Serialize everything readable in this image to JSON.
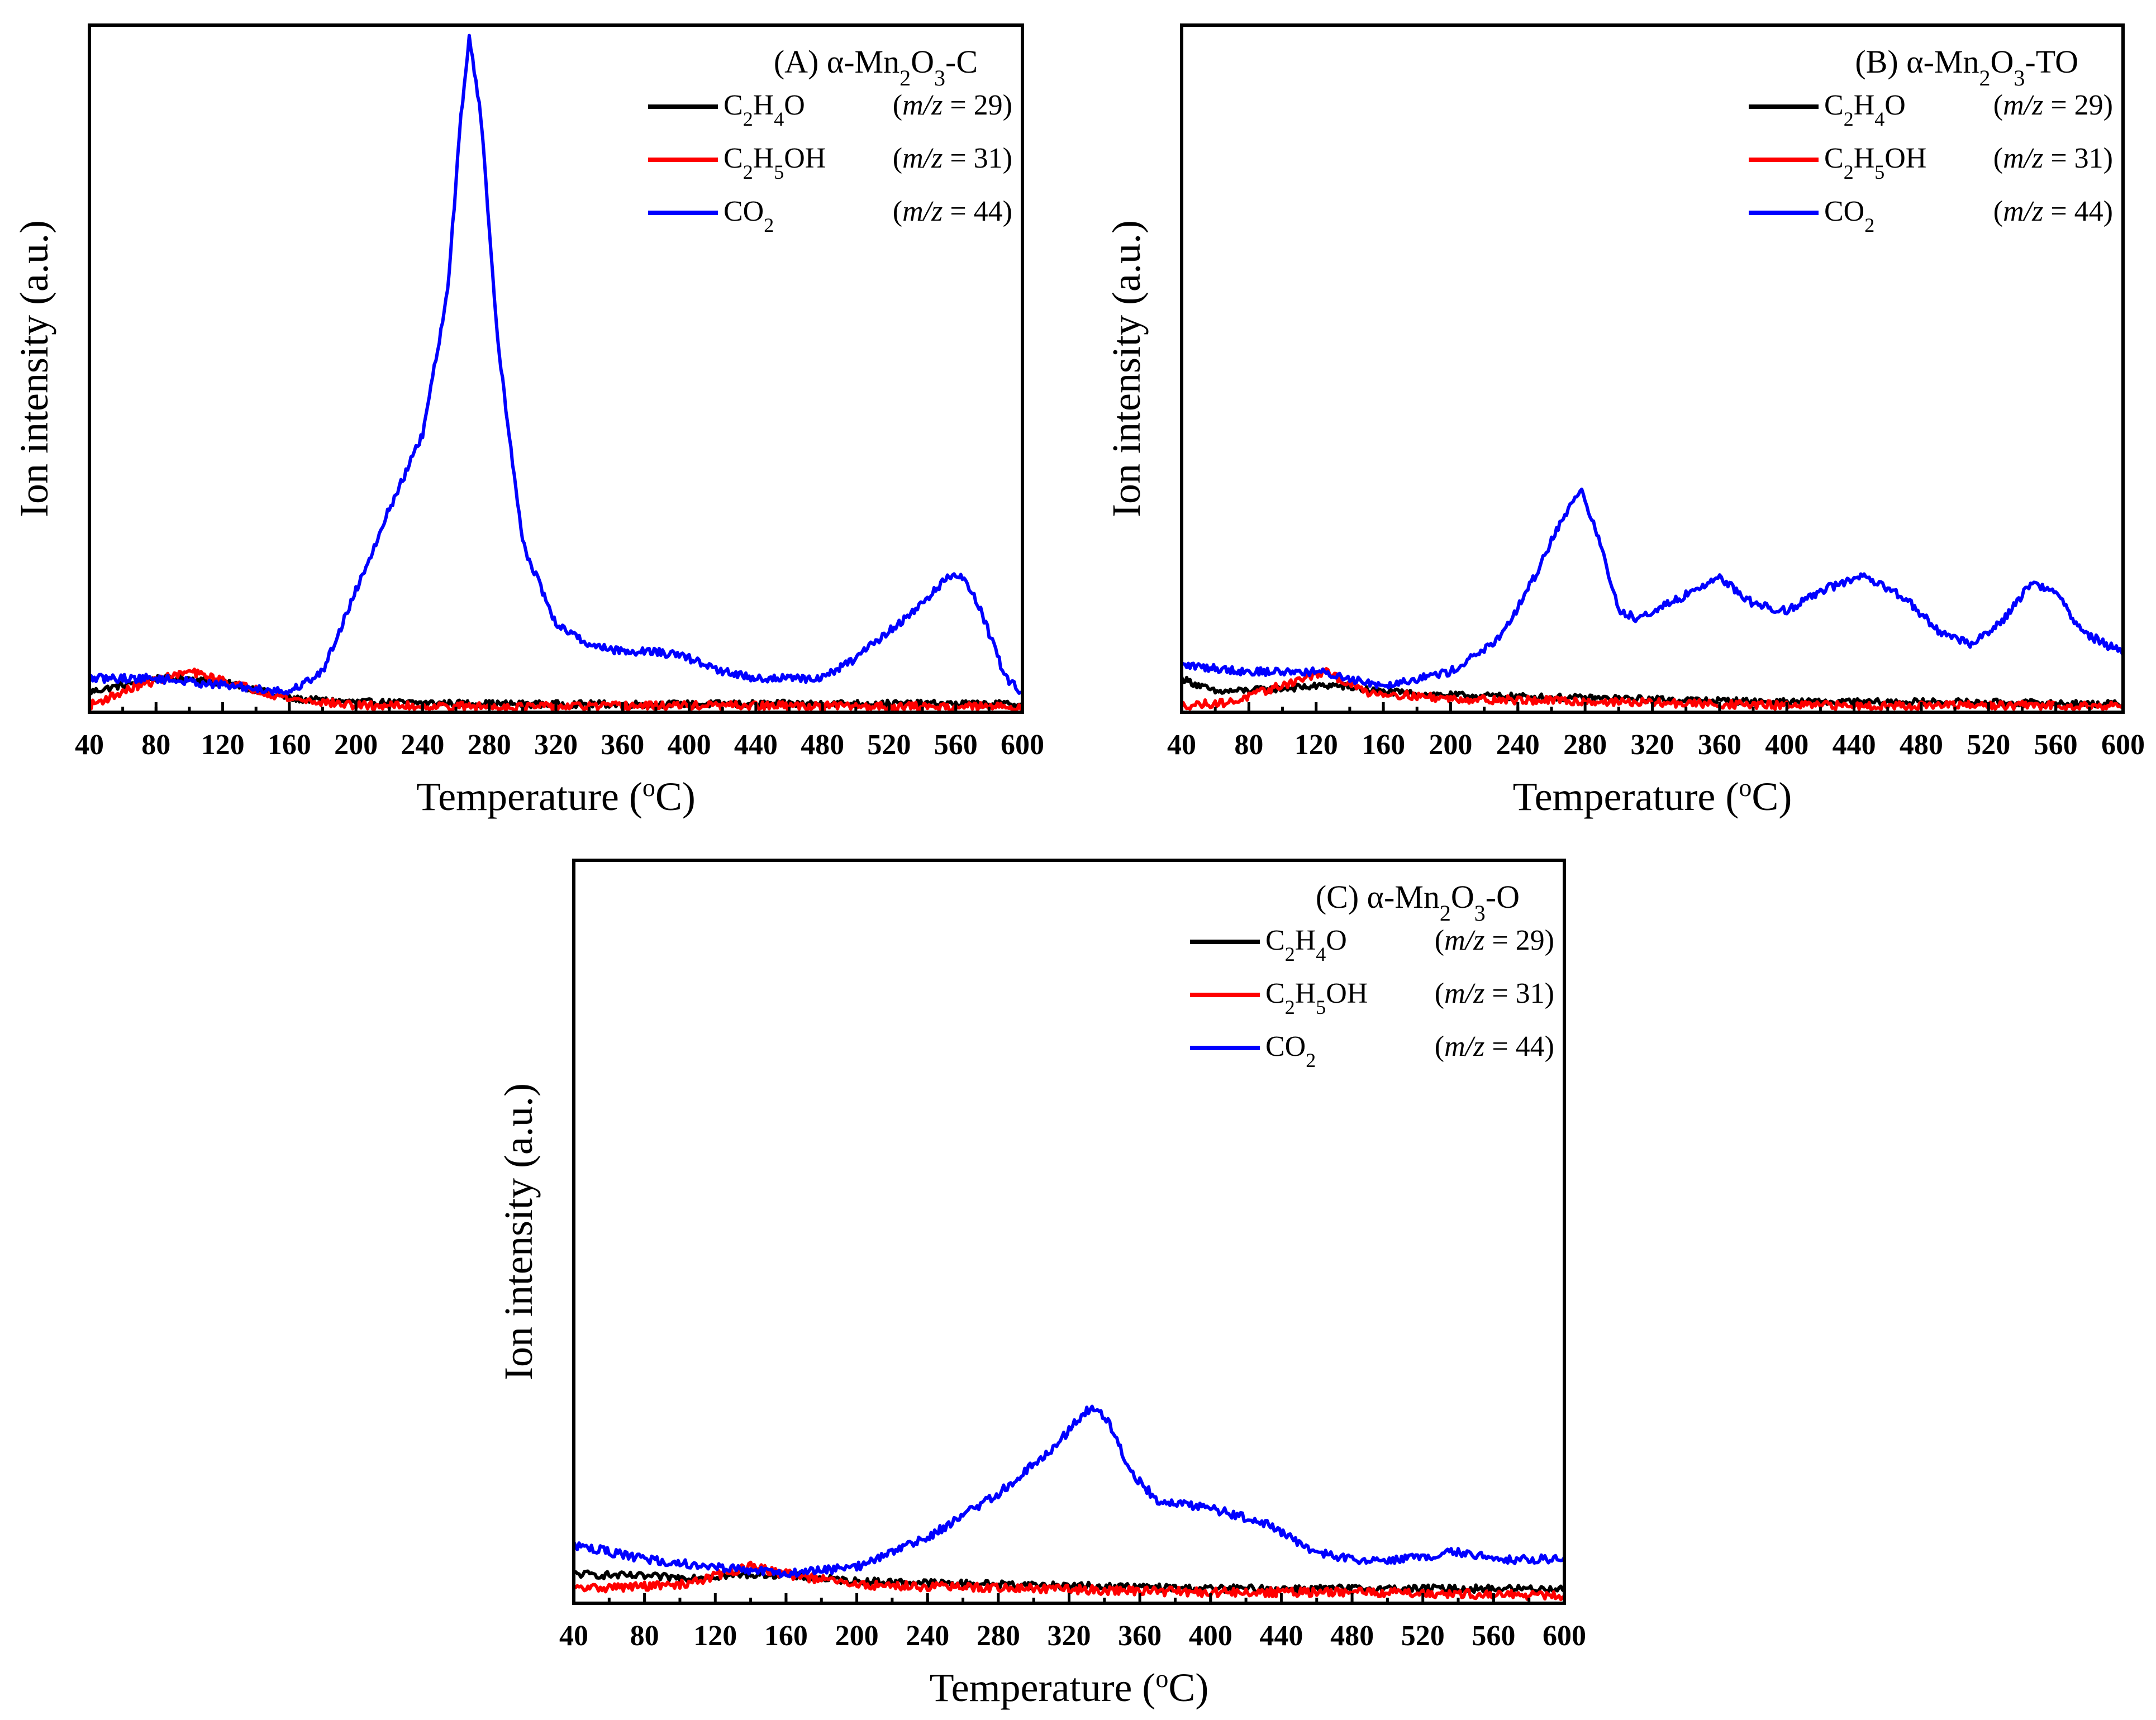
{
  "chart_data": [
    {
      "id": "A",
      "type": "line",
      "title": "(A) α-Mn2O3-C",
      "title_parts": {
        "prefix": "(A) α-Mn",
        "sub1": "2",
        "mid": "O",
        "sub2": "3",
        "suffix": "-C"
      },
      "xlabel": "Temperature (oC)",
      "xlabel_parts": {
        "pre": "Temperature (",
        "sup": "o",
        "post": "C)"
      },
      "ylabel": "Ion intensity (a.u.)",
      "xlim": [
        40,
        600
      ],
      "ylim": [
        0,
        100
      ],
      "xticks": [
        40,
        80,
        120,
        160,
        200,
        240,
        280,
        320,
        360,
        400,
        440,
        480,
        520,
        560,
        600
      ],
      "legend_position": "top-right",
      "series": [
        {
          "name": "C2H4O (m/z = 29)",
          "color": "#000000",
          "noise": 0.5,
          "x": [
            40,
            80,
            100,
            130,
            160,
            200,
            300,
            400,
            500,
            600
          ],
          "y": [
            3,
            5,
            5,
            4,
            2,
            1.5,
            1.2,
            1.2,
            1.3,
            1.2
          ]
        },
        {
          "name": "C2H5OH (m/z = 31)",
          "color": "#ff0000",
          "noise": 0.6,
          "x": [
            40,
            70,
            100,
            130,
            160,
            200,
            300,
            400,
            500,
            600
          ],
          "y": [
            1,
            4,
            6,
            4,
            2,
            1,
            0.8,
            1,
            0.9,
            0.8
          ]
        },
        {
          "name": "CO2 (m/z = 44)",
          "color": "#0000ff",
          "noise": 0.6,
          "x": [
            40,
            80,
            120,
            160,
            180,
            200,
            220,
            240,
            255,
            263,
            268,
            275,
            285,
            300,
            320,
            340,
            360,
            380,
            400,
            420,
            440,
            460,
            480,
            500,
            520,
            540,
            555,
            565,
            575,
            590,
            600
          ],
          "y": [
            5,
            5,
            4,
            3,
            6,
            18,
            30,
            41,
            62,
            88,
            100,
            88,
            55,
            25,
            13,
            10,
            9,
            9,
            8,
            6,
            5,
            5,
            5,
            8,
            12,
            16,
            20,
            20,
            15,
            5,
            3
          ]
        }
      ],
      "legend": [
        {
          "species": "C2H4O",
          "parts": [
            [
              "C",
              ""
            ],
            [
              "2",
              "sub"
            ],
            [
              "H",
              ""
            ],
            [
              "4",
              "sub"
            ],
            [
              "O",
              ""
            ]
          ],
          "mz_open": "(",
          "mz_var": "m/z",
          "mz_value": " = 29)",
          "color": "#000000"
        },
        {
          "species": "C2H5OH",
          "parts": [
            [
              "C",
              ""
            ],
            [
              "2",
              "sub"
            ],
            [
              "H",
              ""
            ],
            [
              "5",
              "sub"
            ],
            [
              "OH",
              ""
            ]
          ],
          "mz_open": "(",
          "mz_var": "m/z",
          "mz_value": " = 31)",
          "color": "#ff0000"
        },
        {
          "species": "CO2",
          "parts": [
            [
              "CO",
              ""
            ],
            [
              "2",
              "sub"
            ]
          ],
          "mz_open": "(",
          "mz_var": "m/z",
          "mz_value": " = 44)",
          "color": "#0000ff"
        }
      ]
    },
    {
      "id": "B",
      "type": "line",
      "title": "(B) α-Mn2O3-TO",
      "title_parts": {
        "prefix": "(B) α-Mn",
        "sub1": "2",
        "mid": "O",
        "sub2": "3",
        "suffix": "-TO"
      },
      "xlabel": "Temperature (oC)",
      "xlabel_parts": {
        "pre": "Temperature (",
        "sup": "o",
        "post": "C)"
      },
      "ylabel": "Ion intensity (a.u.)",
      "xlim": [
        40,
        600
      ],
      "ylim": [
        0,
        100
      ],
      "xticks": [
        40,
        80,
        120,
        160,
        200,
        240,
        280,
        320,
        360,
        400,
        440,
        480,
        520,
        560,
        600
      ],
      "legend_position": "top-right",
      "series": [
        {
          "name": "C2H4O (m/z = 29)",
          "color": "#000000",
          "noise": 0.5,
          "x": [
            40,
            60,
            100,
            130,
            160,
            200,
            300,
            400,
            500,
            600
          ],
          "y": [
            5,
            3,
            3.5,
            4,
            3,
            2.5,
            2,
            1.5,
            1.5,
            1.2
          ]
        },
        {
          "name": "C2H5OH (m/z = 31)",
          "color": "#ff0000",
          "noise": 0.6,
          "x": [
            40,
            70,
            100,
            125,
            150,
            200,
            300,
            400,
            500,
            600
          ],
          "y": [
            1,
            1.5,
            4,
            6,
            3,
            2,
            1.5,
            1,
            1,
            1
          ]
        },
        {
          "name": "CO2 (m/z = 44)",
          "color": "#0000ff",
          "noise": 0.6,
          "x": [
            40,
            80,
            120,
            160,
            200,
            230,
            250,
            265,
            278,
            290,
            300,
            310,
            330,
            360,
            380,
            400,
            420,
            445,
            470,
            490,
            510,
            530,
            545,
            560,
            575,
            590,
            600
          ],
          "y": [
            7,
            6,
            6,
            4,
            6,
            11,
            20,
            28,
            33,
            24,
            15,
            14,
            16,
            20,
            16,
            15,
            18,
            20,
            17,
            12,
            10,
            14,
            19,
            18,
            12,
            10,
            9
          ]
        }
      ],
      "legend": [
        {
          "species": "C2H4O",
          "parts": [
            [
              "C",
              ""
            ],
            [
              "2",
              "sub"
            ],
            [
              "H",
              ""
            ],
            [
              "4",
              "sub"
            ],
            [
              "O",
              ""
            ]
          ],
          "mz_open": "(",
          "mz_var": "m/z",
          "mz_value": " = 29)",
          "color": "#000000"
        },
        {
          "species": "C2H5OH",
          "parts": [
            [
              "C",
              ""
            ],
            [
              "2",
              "sub"
            ],
            [
              "H",
              ""
            ],
            [
              "5",
              "sub"
            ],
            [
              "OH",
              ""
            ]
          ],
          "mz_open": "(",
          "mz_var": "m/z",
          "mz_value": " = 31)",
          "color": "#ff0000"
        },
        {
          "species": "CO2",
          "parts": [
            [
              "CO",
              ""
            ],
            [
              "2",
              "sub"
            ]
          ],
          "mz_open": "(",
          "mz_var": "m/z",
          "mz_value": " = 44)",
          "color": "#0000ff"
        }
      ]
    },
    {
      "id": "C",
      "type": "line",
      "title": "(C) α-Mn2O3-O",
      "title_parts": {
        "prefix": "(C) α-Mn",
        "sub1": "2",
        "mid": "O",
        "sub2": "3",
        "suffix": "-O"
      },
      "xlabel": "Temperature (oC)",
      "xlabel_parts": {
        "pre": "Temperature (",
        "sup": "o",
        "post": "C)"
      },
      "ylabel": "Ion intensity (a.u.)",
      "xlim": [
        40,
        600
      ],
      "ylim": [
        0,
        100
      ],
      "xticks": [
        40,
        80,
        120,
        160,
        200,
        240,
        280,
        320,
        360,
        400,
        440,
        480,
        520,
        560,
        600
      ],
      "legend_position": "top-right",
      "series": [
        {
          "name": "C2H4O (m/z = 29)",
          "color": "#000000",
          "noise": 0.5,
          "x": [
            40,
            100,
            150,
            200,
            300,
            400,
            500,
            600
          ],
          "y": [
            4,
            3.5,
            4,
            3,
            2.5,
            2,
            2,
            2
          ]
        },
        {
          "name": "C2H5OH (m/z = 31)",
          "color": "#ff0000",
          "noise": 0.6,
          "x": [
            40,
            100,
            140,
            160,
            200,
            300,
            400,
            500,
            600
          ],
          "y": [
            2,
            2.5,
            5,
            4,
            2.5,
            2,
            1.5,
            1.5,
            1
          ]
        },
        {
          "name": "CO2 (m/z = 44)",
          "color": "#0000ff",
          "noise": 0.6,
          "x": [
            40,
            80,
            120,
            160,
            200,
            240,
            280,
            310,
            325,
            333,
            342,
            355,
            370,
            400,
            430,
            460,
            480,
            510,
            540,
            570,
            600
          ],
          "y": [
            8,
            6,
            5,
            4,
            5,
            9,
            15,
            21,
            25,
            27,
            25,
            18,
            14,
            13,
            11,
            7,
            6,
            6,
            7,
            6,
            6
          ]
        }
      ],
      "legend": [
        {
          "species": "C2H4O",
          "parts": [
            [
              "C",
              ""
            ],
            [
              "2",
              "sub"
            ],
            [
              "H",
              ""
            ],
            [
              "4",
              "sub"
            ],
            [
              "O",
              ""
            ]
          ],
          "mz_open": "(",
          "mz_var": "m/z",
          "mz_value": " = 29)",
          "color": "#000000"
        },
        {
          "species": "C2H5OH",
          "parts": [
            [
              "C",
              ""
            ],
            [
              "2",
              "sub"
            ],
            [
              "H",
              ""
            ],
            [
              "5",
              "sub"
            ],
            [
              "OH",
              ""
            ]
          ],
          "mz_open": "(",
          "mz_var": "m/z",
          "mz_value": " = 31)",
          "color": "#ff0000"
        },
        {
          "species": "CO2",
          "parts": [
            [
              "CO",
              ""
            ],
            [
              "2",
              "sub"
            ]
          ],
          "mz_open": "(",
          "mz_var": "m/z",
          "mz_value": " = 44)",
          "color": "#0000ff"
        }
      ]
    }
  ]
}
